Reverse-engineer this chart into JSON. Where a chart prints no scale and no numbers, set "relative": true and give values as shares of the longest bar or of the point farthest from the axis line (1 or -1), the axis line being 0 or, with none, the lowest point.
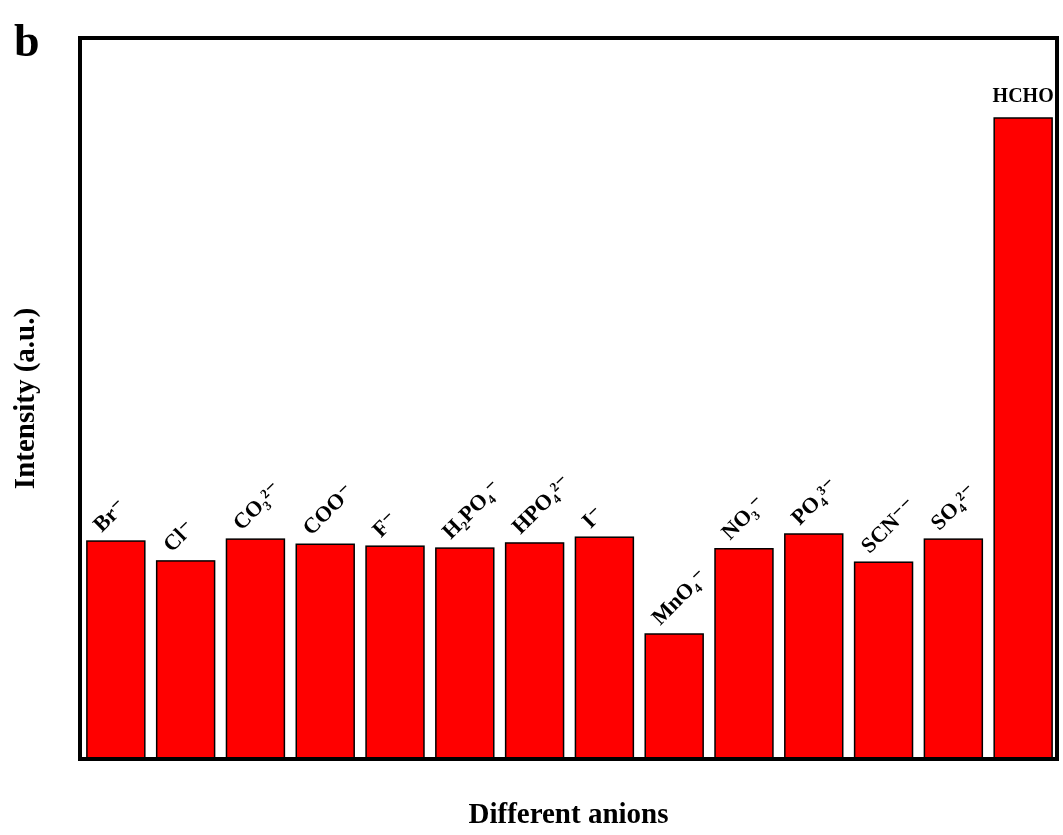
{
  "chart_data": {
    "type": "bar",
    "relative": true,
    "xlabel": "Different anions",
    "ylabel": "Intensity (a.u.)",
    "annotations": [
      "b"
    ],
    "categories": [
      "Br⁻",
      "Cl⁻",
      "CO₃²⁻",
      "COO⁻",
      "F⁻",
      "H₂PO₄⁻",
      "HPO₄²⁻",
      "I⁻",
      "MnO₄⁻",
      "NO₃⁻",
      "PO₄³⁻",
      "SCN⁻⁻",
      "SO₄²⁻",
      "HCHO"
    ],
    "values": [
      0.34,
      0.309,
      0.343,
      0.335,
      0.332,
      0.329,
      0.337,
      0.346,
      0.195,
      0.328,
      0.351,
      0.307,
      0.343,
      1
    ],
    "color": "#ff0000"
  }
}
